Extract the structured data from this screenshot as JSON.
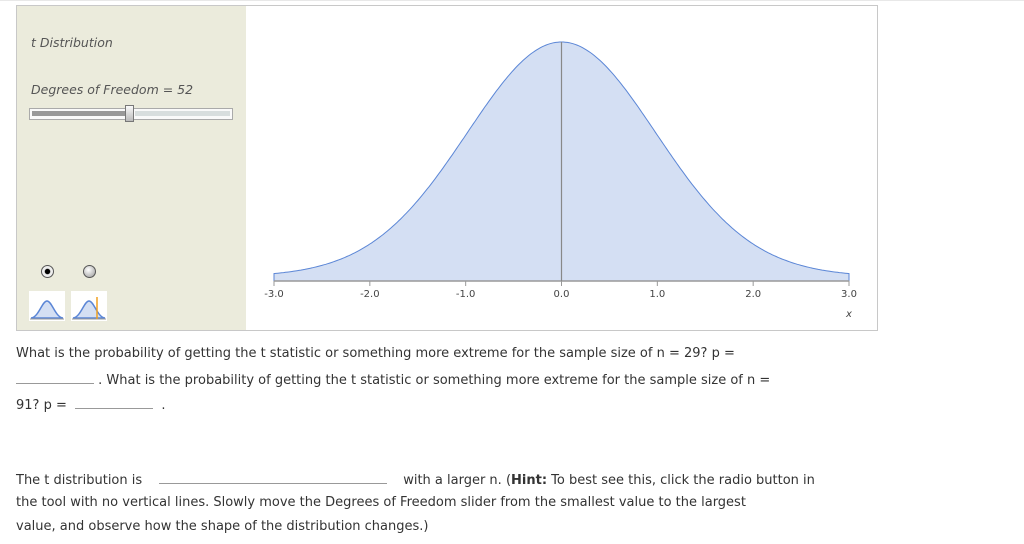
{
  "tool": {
    "title": "t Distribution",
    "df_label": "Degrees of Freedom",
    "df_value": 52,
    "df_display": "Degrees of Freedom = 52",
    "slider_fraction": 0.5,
    "radio_selected": 0,
    "radio_options": [
      "curve-only",
      "curve-with-vertical-line"
    ]
  },
  "chart_data": {
    "type": "area",
    "distribution": "t",
    "df": 52,
    "xlim": [
      -3.0,
      3.0
    ],
    "xticks": [
      "-3.0",
      "-2.0",
      "-1.0",
      "0.0",
      "1.0",
      "2.0",
      "3.0"
    ],
    "xlabel": "x",
    "fill_color": "#d4dff3",
    "line_color": "#5b86d6",
    "center_line": 0.0
  },
  "question1": {
    "line1": "What is the probability of getting the t statistic or something more extreme for the sample size of n = 29? p =",
    "line2": ". What is the probability of getting the t statistic or something more extreme for the sample size of n =",
    "line3a": "91? p =",
    "line3b": ".",
    "answer1": "",
    "answer2": ""
  },
  "question2": {
    "line1a": "The t distribution is",
    "line1b": "with a larger n. (",
    "hint_label": "Hint:",
    "line1c": " To best see this, click the radio button in",
    "line2": "the tool with no vertical lines. Slowly move the Degrees of Freedom slider from the smallest value to the largest",
    "line3": "value, and observe how the shape of the distribution changes.)",
    "answer": ""
  }
}
